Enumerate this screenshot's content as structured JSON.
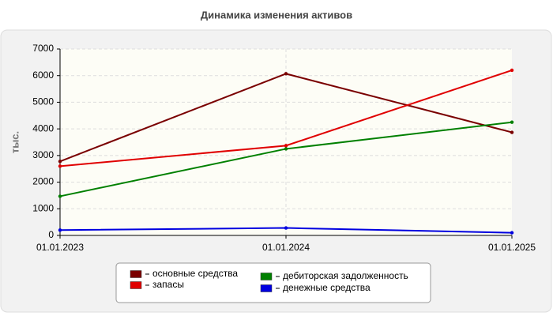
{
  "chart_data": {
    "type": "line",
    "title": "Динамика изменения активов",
    "y_label": "тыс.",
    "categories": [
      "01.01.2023",
      "01.01.2024",
      "01.01.2025"
    ],
    "series": [
      {
        "name": "основные средства",
        "color": "#7a0000",
        "values": [
          2780,
          6070,
          3870
        ]
      },
      {
        "name": "запасы",
        "color": "#e00000",
        "values": [
          2600,
          3370,
          6200
        ]
      },
      {
        "name": "дебиторская задолженность",
        "color": "#008000",
        "values": [
          1470,
          3250,
          4250
        ]
      },
      {
        "name": "денежные средства",
        "color": "#0000e0",
        "values": [
          200,
          280,
          100
        ]
      }
    ],
    "ylim": [
      0,
      7000
    ],
    "yticks": [
      0,
      1000,
      2000,
      3000,
      4000,
      5000,
      6000,
      7000
    ],
    "grid": true
  }
}
